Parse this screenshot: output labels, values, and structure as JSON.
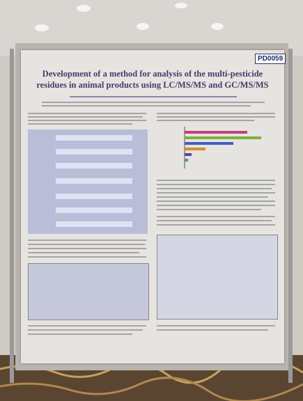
{
  "poster": {
    "id": "PD0059",
    "title": "Development of a method for analysis of the multi-pesticide residues in animal products using LC/MS/MS and GC/MS/MS"
  }
}
